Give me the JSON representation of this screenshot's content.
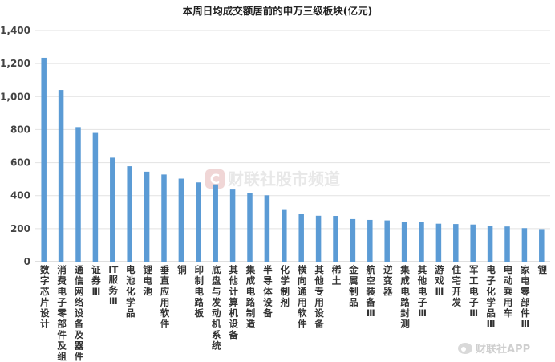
{
  "chart_data": {
    "type": "bar",
    "title": "本周日均成交额居前的申万三级板块(亿元)",
    "xlabel": "",
    "ylabel": "",
    "ylim": [
      0,
      1400
    ],
    "yticks": [
      0,
      200,
      400,
      600,
      800,
      "1,000",
      "1,200",
      "1,400"
    ],
    "grid": true,
    "bar_color": "#5b9bd5",
    "categories": [
      "数字芯片设计",
      "消费电子零部件及组装",
      "通信网络设备及器件",
      "证券Ⅲ",
      "IT服务Ⅲ",
      "电池化学品",
      "锂电池",
      "垂直应用软件",
      "铜",
      "印制电路板",
      "底盘与发动机系统",
      "其他计算机设备",
      "集成电路制造",
      "半导体设备",
      "化学制剂",
      "横向通用软件",
      "其他专用设备",
      "稀土",
      "金属制品",
      "航空装备Ⅲ",
      "逆变器",
      "集成电路封测",
      "其他电子Ⅲ",
      "游戏Ⅲ",
      "住宅开发",
      "军工电子Ⅲ",
      "电子化学品Ⅲ",
      "电动乘用车",
      "家电零部件Ⅲ",
      "锂"
    ],
    "values": [
      1235,
      1040,
      815,
      780,
      630,
      578,
      545,
      528,
      503,
      480,
      468,
      437,
      415,
      402,
      313,
      288,
      278,
      277,
      258,
      253,
      250,
      242,
      240,
      230,
      228,
      225,
      218,
      213,
      203,
      197
    ]
  },
  "watermark": {
    "center_text": "财联社股市频道",
    "center_logo": "C",
    "corner_text": "财联社APP",
    "corner_icon": "weibo-icon"
  }
}
